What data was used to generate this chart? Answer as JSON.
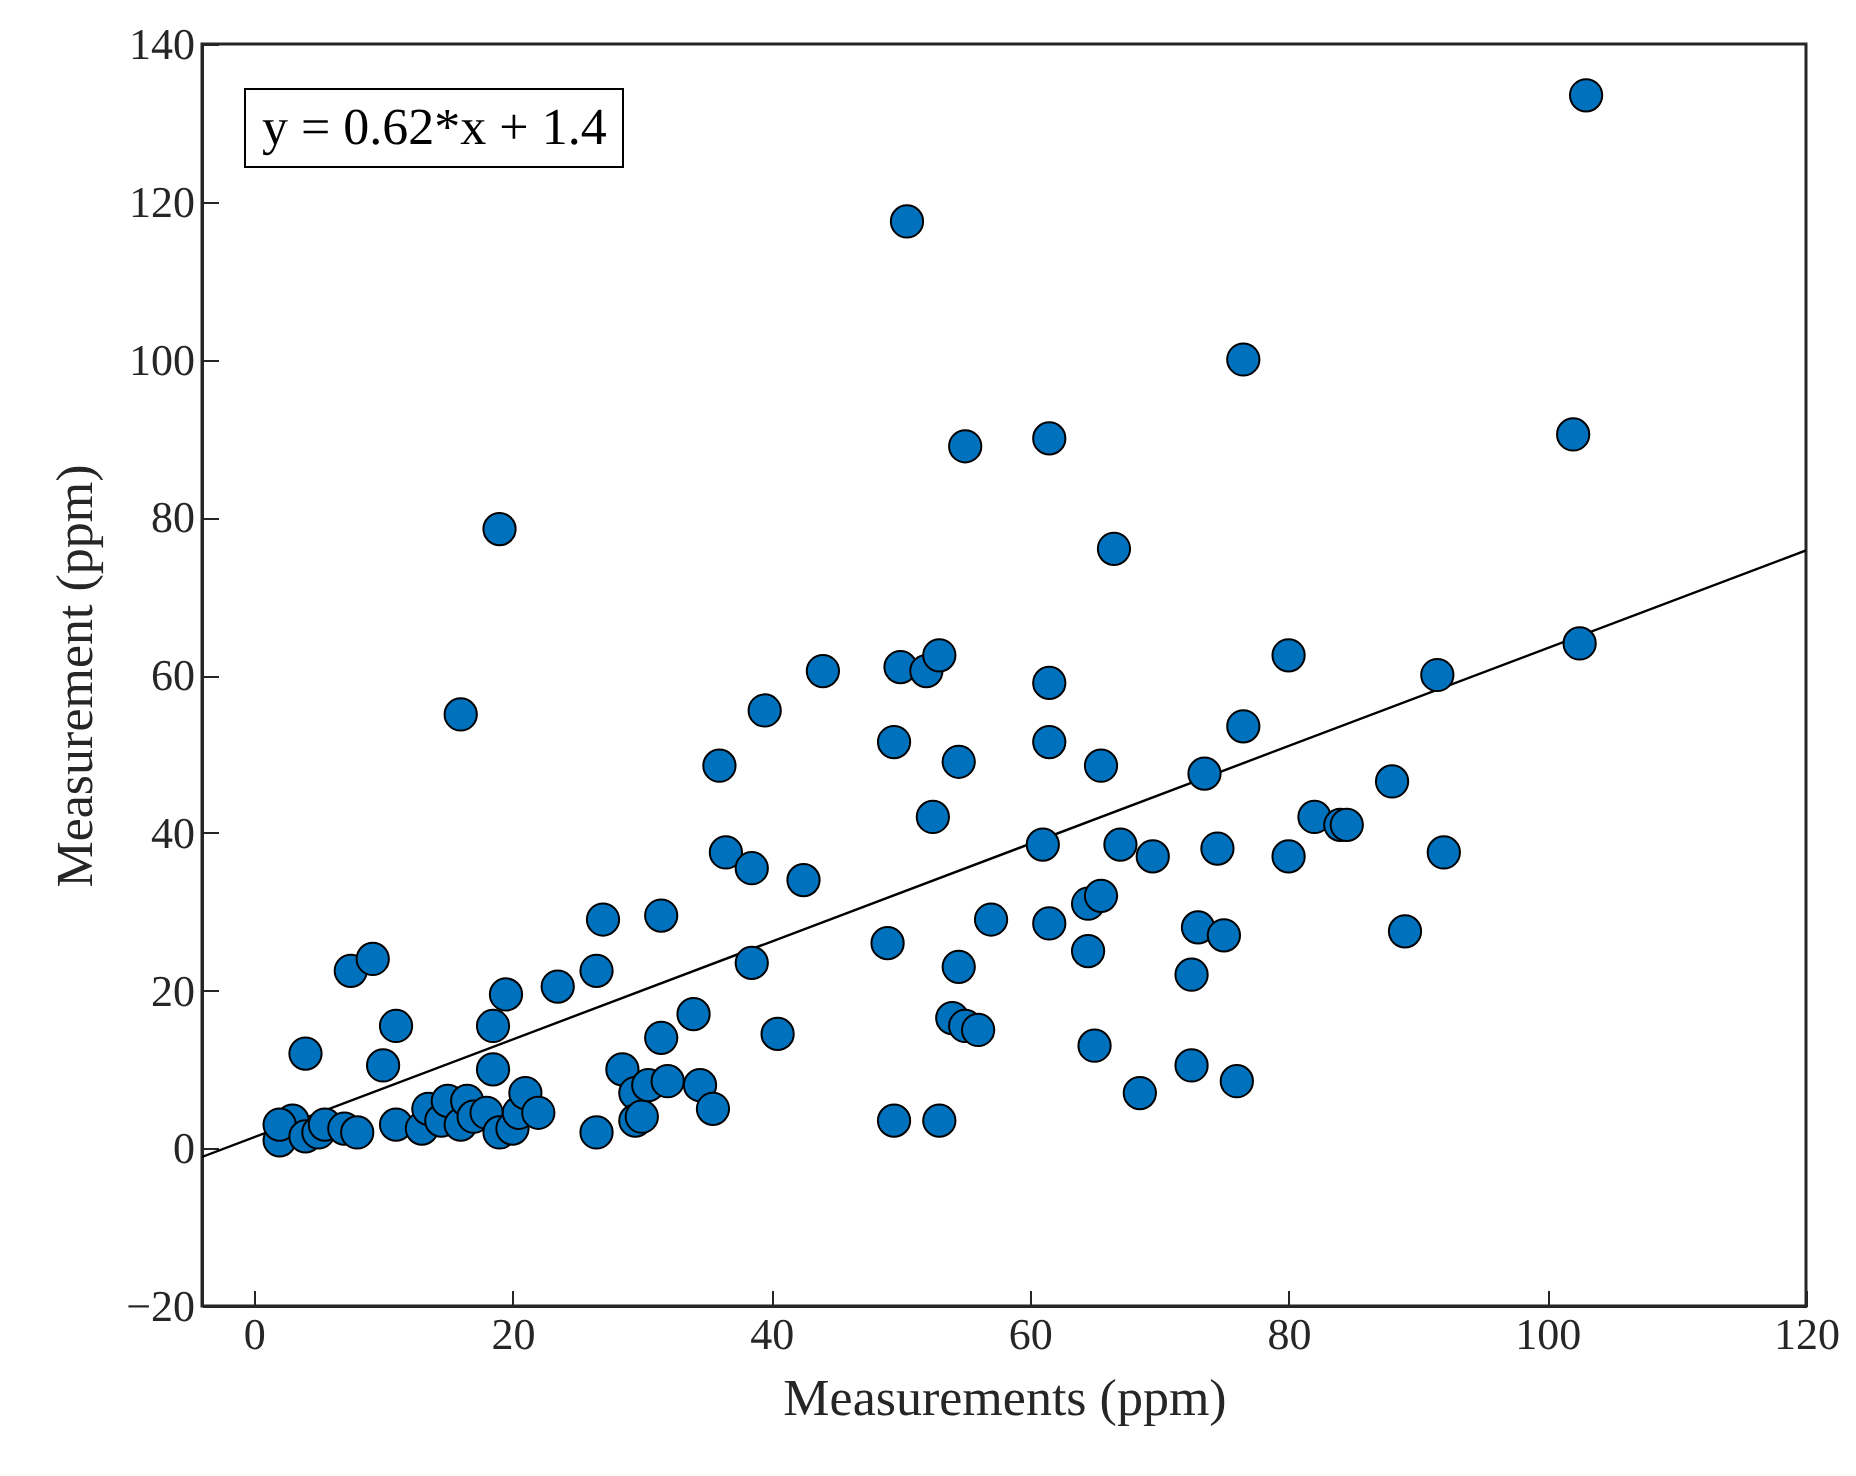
{
  "chart_data": {
    "type": "scatter",
    "xlabel": "Measurements (ppm)",
    "ylabel": "Measurement (ppm)",
    "annotations": [
      "y = 0.62*x + 1.4"
    ],
    "xlim": [
      -4,
      120
    ],
    "ylim": [
      -20,
      140
    ],
    "xticks": [
      0,
      20,
      40,
      60,
      80,
      100,
      120
    ],
    "yticks": [
      -20,
      0,
      20,
      40,
      60,
      80,
      100,
      120,
      140
    ],
    "grid": false,
    "series": [
      {
        "color": "#0072bd",
        "marker": "circle",
        "x": [
          2,
          3,
          2,
          4,
          4,
          5,
          5.5,
          7,
          8,
          7.5,
          9.2,
          10,
          11,
          11,
          13,
          13.5,
          14.5,
          15,
          16,
          16,
          16.5,
          17,
          18,
          18.5,
          18.5,
          19,
          19,
          19.5,
          20,
          20.5,
          21,
          22,
          23.5,
          26.5,
          26.5,
          27,
          28.5,
          29.5,
          29.5,
          30,
          30.5,
          31.5,
          31.5,
          32,
          34,
          34.5,
          35.5,
          36,
          36.5,
          38.5,
          38.5,
          39.5,
          40.5,
          42.5,
          44,
          49,
          49.5,
          49.5,
          50,
          50.5,
          52,
          52.5,
          53,
          53,
          54,
          54.5,
          54.5,
          55,
          55,
          56,
          57,
          61,
          61.5,
          61.5,
          61.5,
          61.5,
          64.5,
          64.5,
          65,
          65.5,
          65.5,
          66.5,
          67,
          68.5,
          69.5,
          72.5,
          72.5,
          73,
          73.5,
          74.5,
          75,
          76,
          76.5,
          76.5,
          80,
          80,
          82,
          84,
          84.5,
          88,
          89,
          91.5,
          92,
          102,
          102.5,
          103
        ],
        "values": [
          1,
          3.5,
          3,
          12,
          1.5,
          2,
          3,
          2.5,
          2,
          22.5,
          24,
          10.5,
          15.5,
          3,
          2.5,
          5,
          3.5,
          6,
          3,
          55,
          6,
          4,
          4.5,
          15.5,
          10,
          2,
          78.5,
          19.5,
          2.5,
          4.5,
          7,
          4.5,
          20.5,
          2,
          22.5,
          29,
          10,
          7,
          3.5,
          4,
          8,
          29.5,
          14,
          8.5,
          17,
          8,
          5,
          48.5,
          37.5,
          35.5,
          23.5,
          55.5,
          14.5,
          34,
          60.5,
          26,
          51.5,
          3.5,
          61,
          117.5,
          60.5,
          42,
          3.5,
          62.5,
          16.5,
          49,
          23,
          89,
          15.5,
          15,
          29,
          38.5,
          59,
          51.5,
          28.5,
          90,
          31,
          25,
          13,
          32,
          48.5,
          76,
          38.5,
          7,
          37,
          22,
          10.5,
          28,
          47.5,
          38,
          27,
          8.5,
          53.5,
          100,
          62.5,
          37,
          42,
          41,
          41,
          46.5,
          27.5,
          60,
          37.5,
          90.5,
          64,
          133.5
        ]
      },
      {
        "type": "line",
        "color": "#000000",
        "marker": "none",
        "x": [
          -4,
          120
        ],
        "values": [
          -1.1,
          75.8
        ]
      }
    ]
  }
}
